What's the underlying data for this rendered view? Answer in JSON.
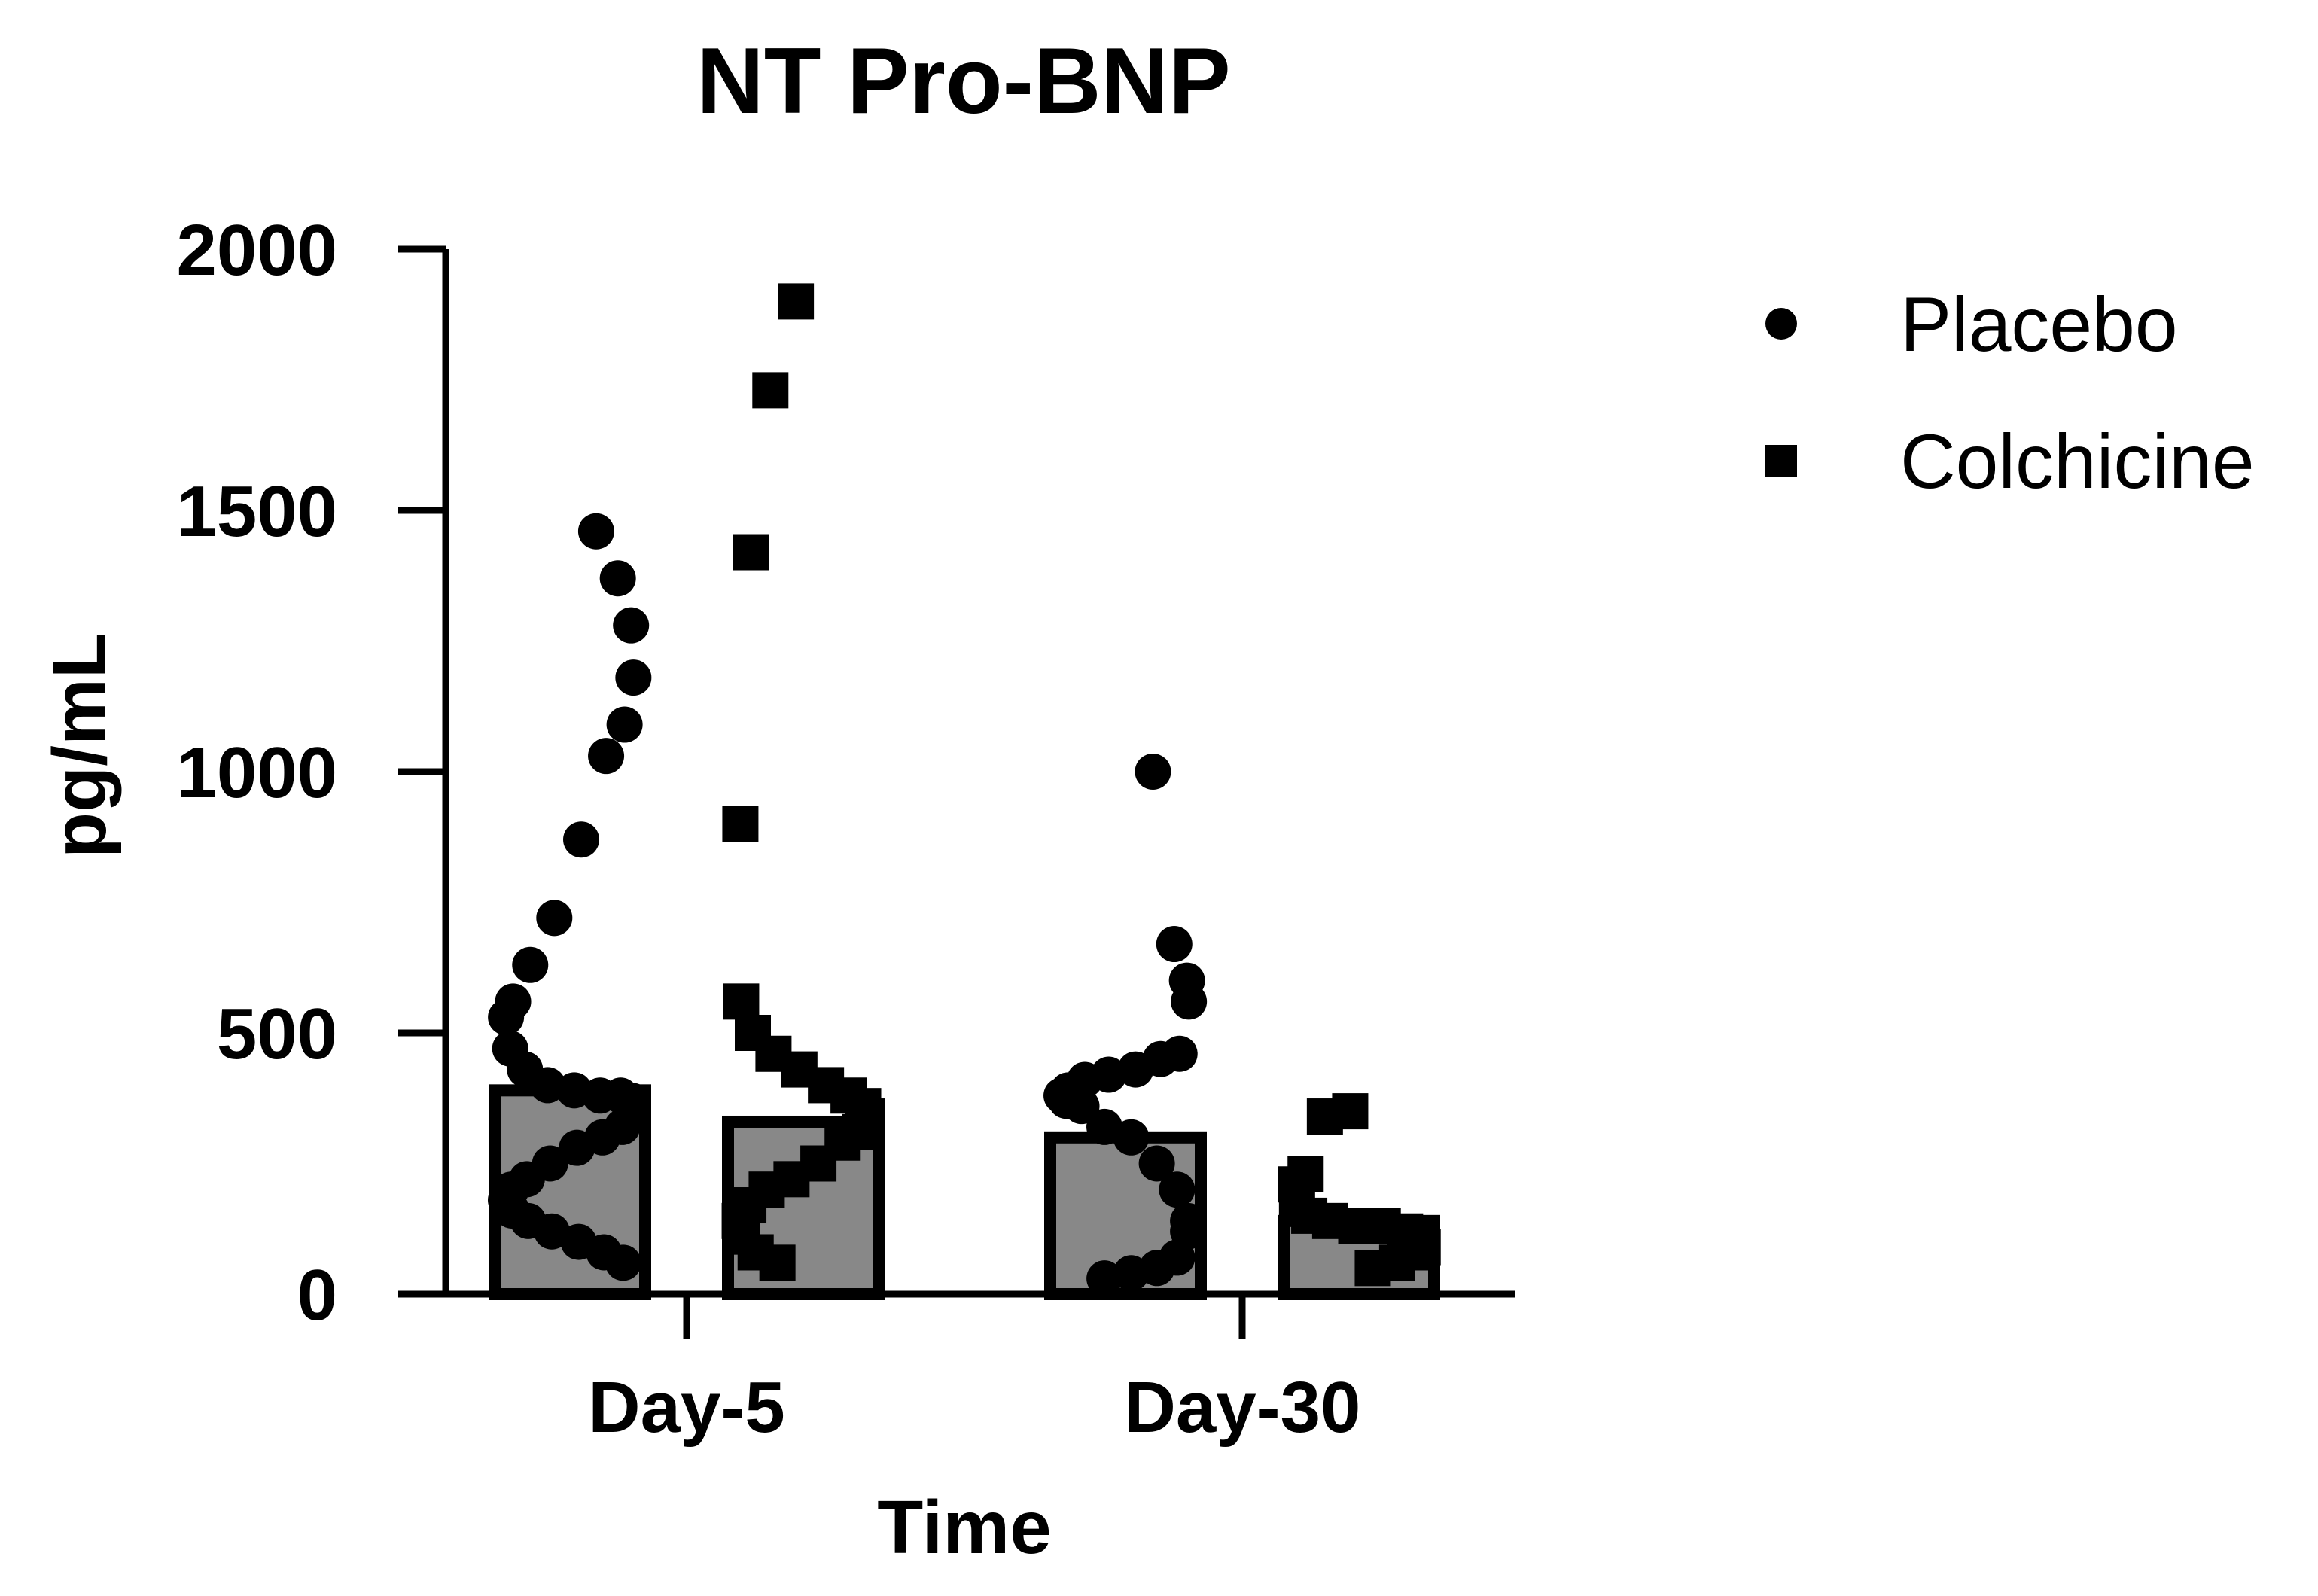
{
  "chart_data": {
    "type": "bar",
    "title": "NT Pro-BNP",
    "xlabel": "Time",
    "ylabel": "pg/mL",
    "ylim": [
      0,
      2000
    ],
    "yticks": [
      0,
      500,
      1000,
      1500,
      2000
    ],
    "categories": [
      "Day-5",
      "Day-30"
    ],
    "grid": false,
    "legend_position": "top-right",
    "series": [
      {
        "name": "Placebo",
        "marker": "circle",
        "bar_color": "#888888",
        "values": [
          390,
          300
        ],
        "points": [
          [
            1460,
            1370,
            1280,
            1180,
            1090,
            1030,
            870,
            720,
            630,
            560,
            530,
            470,
            430,
            400,
            390,
            380,
            380,
            370,
            350,
            320,
            300,
            280,
            250,
            220,
            200,
            180,
            160,
            140,
            120,
            100,
            80,
            60
          ],
          [
            1000,
            670,
            600,
            560,
            460,
            450,
            430,
            420,
            410,
            390,
            380,
            370,
            360,
            320,
            300,
            250,
            200,
            140,
            120,
            70,
            50,
            40,
            30
          ]
        ]
      },
      {
        "name": "Colchicine",
        "marker": "square",
        "bar_color": "#888888",
        "values": [
          330,
          140
        ],
        "points": [
          [
            1900,
            1730,
            1420,
            900,
            560,
            500,
            460,
            430,
            400,
            380,
            360,
            340,
            310,
            290,
            250,
            220,
            200,
            170,
            140,
            110,
            80,
            60
          ],
          [
            350,
            340,
            230,
            210,
            180,
            150,
            140,
            130,
            130,
            120,
            110,
            90,
            80,
            60,
            50
          ]
        ]
      }
    ]
  }
}
